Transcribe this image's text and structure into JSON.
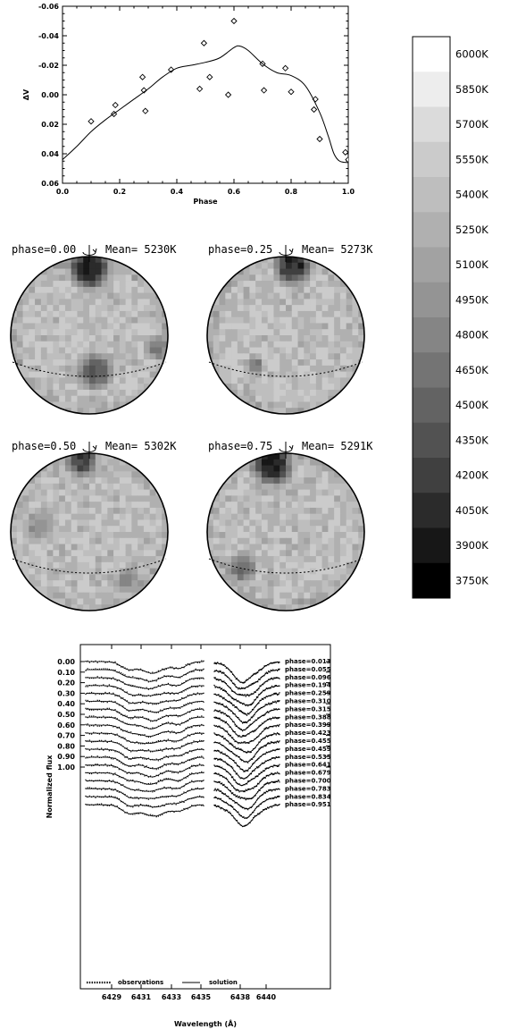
{
  "chart_data": [
    {
      "type": "scatter",
      "xlabel": "Phase",
      "ylabel": "ΔV",
      "xlim": [
        0.0,
        1.0
      ],
      "ylim": [
        -0.06,
        0.06
      ],
      "y_inverted": true,
      "xticks": [
        "0.0",
        "0.2",
        "0.4",
        "0.6",
        "0.8",
        "1.0"
      ],
      "yticks": [
        "-0.06",
        "-0.04",
        "-0.02",
        "0.00",
        "0.02",
        "0.04",
        "0.06"
      ],
      "series": [
        {
          "marker": "diamond",
          "x": [
            0.1,
            0.18,
            0.185,
            0.28,
            0.285,
            0.29,
            0.38,
            0.48,
            0.495,
            0.515,
            0.58,
            0.6,
            0.7,
            0.705,
            0.78,
            0.8,
            0.88,
            0.885,
            0.9,
            0.99,
            1.0
          ],
          "y": [
            0.018,
            0.013,
            0.007,
            -0.012,
            -0.003,
            0.011,
            -0.017,
            -0.004,
            -0.035,
            -0.012,
            0.0,
            -0.05,
            -0.021,
            -0.003,
            -0.018,
            -0.002,
            0.01,
            0.003,
            0.03,
            0.039,
            0.044
          ]
        },
        {
          "type": "line",
          "x": [
            0.0,
            0.05,
            0.1,
            0.15,
            0.2,
            0.25,
            0.3,
            0.35,
            0.4,
            0.45,
            0.5,
            0.55,
            0.6,
            0.62,
            0.65,
            0.7,
            0.75,
            0.8,
            0.85,
            0.9,
            0.93,
            0.95,
            0.97,
            1.0
          ],
          "y": [
            0.044,
            0.035,
            0.025,
            0.017,
            0.01,
            0.003,
            -0.004,
            -0.012,
            -0.018,
            -0.02,
            -0.022,
            -0.025,
            -0.032,
            -0.033,
            -0.03,
            -0.021,
            -0.015,
            -0.013,
            -0.006,
            0.012,
            0.028,
            0.04,
            0.045,
            0.046
          ]
        }
      ]
    },
    {
      "type": "heatmap",
      "panels": [
        {
          "phase_text": "phase=0.00",
          "mean_text": "Mean= 5230K"
        },
        {
          "phase_text": "phase=0.25",
          "mean_text": "Mean= 5273K"
        },
        {
          "phase_text": "phase=0.50",
          "mean_text": "Mean= 5302K"
        },
        {
          "phase_text": "phase=0.75",
          "mean_text": "Mean= 5291K"
        }
      ],
      "colorbar": {
        "labels": [
          "6000K",
          "5850K",
          "5700K",
          "5550K",
          "5400K",
          "5250K",
          "5100K",
          "4950K",
          "4800K",
          "4650K",
          "4500K",
          "4350K",
          "4200K",
          "4050K",
          "3900K",
          "3750K"
        ],
        "colors": [
          "#ffffff",
          "#ededed",
          "#dbdbdb",
          "#cbcbcb",
          "#bebebe",
          "#b0b0b0",
          "#a2a2a2",
          "#949494",
          "#858585",
          "#747474",
          "#636363",
          "#525252",
          "#404040",
          "#2b2b2b",
          "#171717",
          "#000000"
        ]
      }
    },
    {
      "type": "line",
      "xlabel": "Wavelength (Å)",
      "ylabel": "Normalized flux",
      "xticks": [
        "6429",
        "6431",
        "6433",
        "6435",
        "6438",
        "6440"
      ],
      "yticks": [
        "0.00",
        "0.10",
        "0.20",
        "0.30",
        "0.40",
        "0.50",
        "0.60",
        "0.70",
        "0.80",
        "0.90",
        "1.00"
      ],
      "y_inverted": true,
      "phases": [
        "phase=0.013",
        "phase=0.055",
        "phase=0.096",
        "phase=0.194",
        "phase=0.259",
        "phase=0.310",
        "phase=0.315",
        "phase=0.388",
        "phase=0.399",
        "phase=0.423",
        "phase=0.455",
        "phase=0.459",
        "phase=0.535",
        "phase=0.641",
        "phase=0.679",
        "phase=0.700",
        "phase=0.783",
        "phase=0.834",
        "phase=0.951"
      ],
      "legend": {
        "observations": "observations",
        "solution": "solution"
      }
    }
  ]
}
